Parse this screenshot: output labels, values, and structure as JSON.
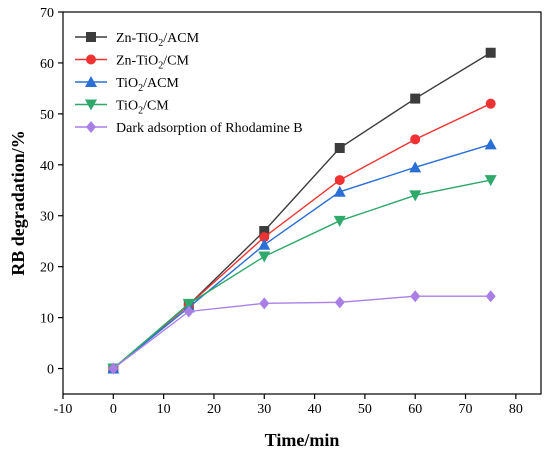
{
  "chart_data": {
    "type": "line",
    "xlabel": "Time/min",
    "ylabel": "RB degradation/%",
    "xlim": [
      -10,
      85
    ],
    "ylim": [
      -5,
      70
    ],
    "xticks": [
      -10,
      0,
      10,
      20,
      30,
      40,
      50,
      60,
      70,
      80
    ],
    "yticks": [
      0,
      10,
      20,
      30,
      40,
      50,
      60,
      70
    ],
    "x": [
      0,
      15,
      30,
      45,
      60,
      75
    ],
    "legend_position": "top-left",
    "grid": false,
    "series": [
      {
        "name": "Zn-TiO2/ACM",
        "label_parts": [
          "Zn-TiO",
          "2",
          "/ACM"
        ],
        "color": "#3c3c3c",
        "marker": "square",
        "values": [
          0,
          12.5,
          27,
          43.3,
          53,
          62
        ]
      },
      {
        "name": "Zn-TiO2/CM",
        "label_parts": [
          "Zn-TiO",
          "2",
          "/CM"
        ],
        "color": "#f03232",
        "marker": "circle",
        "values": [
          0,
          12.5,
          25.8,
          37,
          45,
          52
        ]
      },
      {
        "name": "TiO2/ACM",
        "label_parts": [
          "TiO",
          "2",
          "/ACM"
        ],
        "color": "#2a6fd6",
        "marker": "triangle-up",
        "values": [
          0,
          12,
          24.3,
          34.7,
          39.5,
          44
        ]
      },
      {
        "name": "TiO2/CM",
        "label_parts": [
          "TiO",
          "2",
          "/CM"
        ],
        "color": "#2ea86b",
        "marker": "triangle-down",
        "values": [
          0,
          12.7,
          22,
          29,
          34,
          37
        ]
      },
      {
        "name": "Dark adsorption of Rhodamine B",
        "label_parts": [
          "Dark adsorption of Rhodamine B",
          "",
          ""
        ],
        "color": "#a97fe6",
        "marker": "diamond",
        "values": [
          0,
          11.2,
          12.8,
          13,
          14.2,
          14.2
        ]
      }
    ]
  }
}
